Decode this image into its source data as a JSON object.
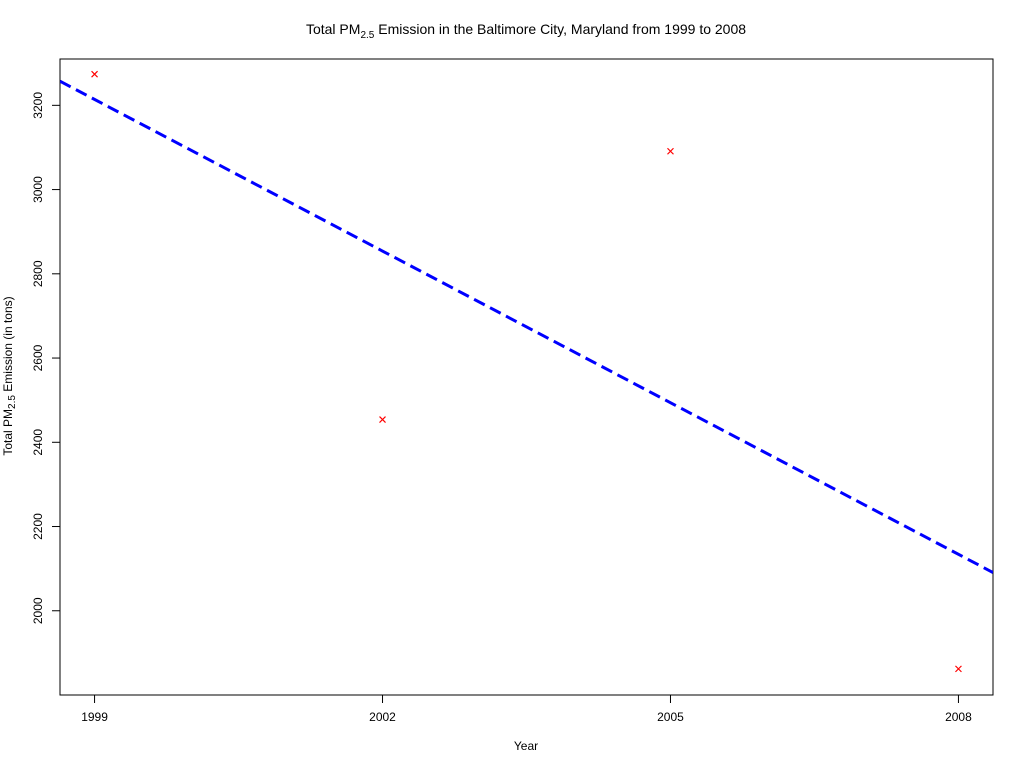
{
  "chart_data": {
    "type": "scatter",
    "title": {
      "before": "Total PM",
      "subscript": "2.5",
      "after": " Emission in the Baltimore City, Maryland from 1999 to 2008"
    },
    "xlabel": "Year",
    "ylabel": {
      "before": "Total PM",
      "subscript": "2.5",
      "after": " Emission (in tons)"
    },
    "x_ticks": [
      1999,
      2002,
      2005,
      2008
    ],
    "x_tick_labels": [
      "1999",
      "2002",
      "2005",
      "2008"
    ],
    "y_ticks": [
      2000,
      2200,
      2400,
      2600,
      2800,
      3000,
      3200
    ],
    "y_tick_labels": [
      "2000",
      "2200",
      "2400",
      "2600",
      "2800",
      "3000",
      "3200"
    ],
    "xlim": [
      1998.64,
      2008.36
    ],
    "ylim": [
      1800,
      3310
    ],
    "grid": false,
    "series": [
      {
        "marker": "x",
        "color": "#ff0000",
        "points": [
          {
            "x": 1999,
            "y": 3274
          },
          {
            "x": 2002,
            "y": 2454
          },
          {
            "x": 2005,
            "y": 3091
          },
          {
            "x": 2008,
            "y": 1862
          }
        ]
      }
    ],
    "trend_line": {
      "style": "dashed",
      "color": "#0000ff",
      "intercept_at_1999": 3214,
      "slope_per_year": -120.0
    }
  }
}
